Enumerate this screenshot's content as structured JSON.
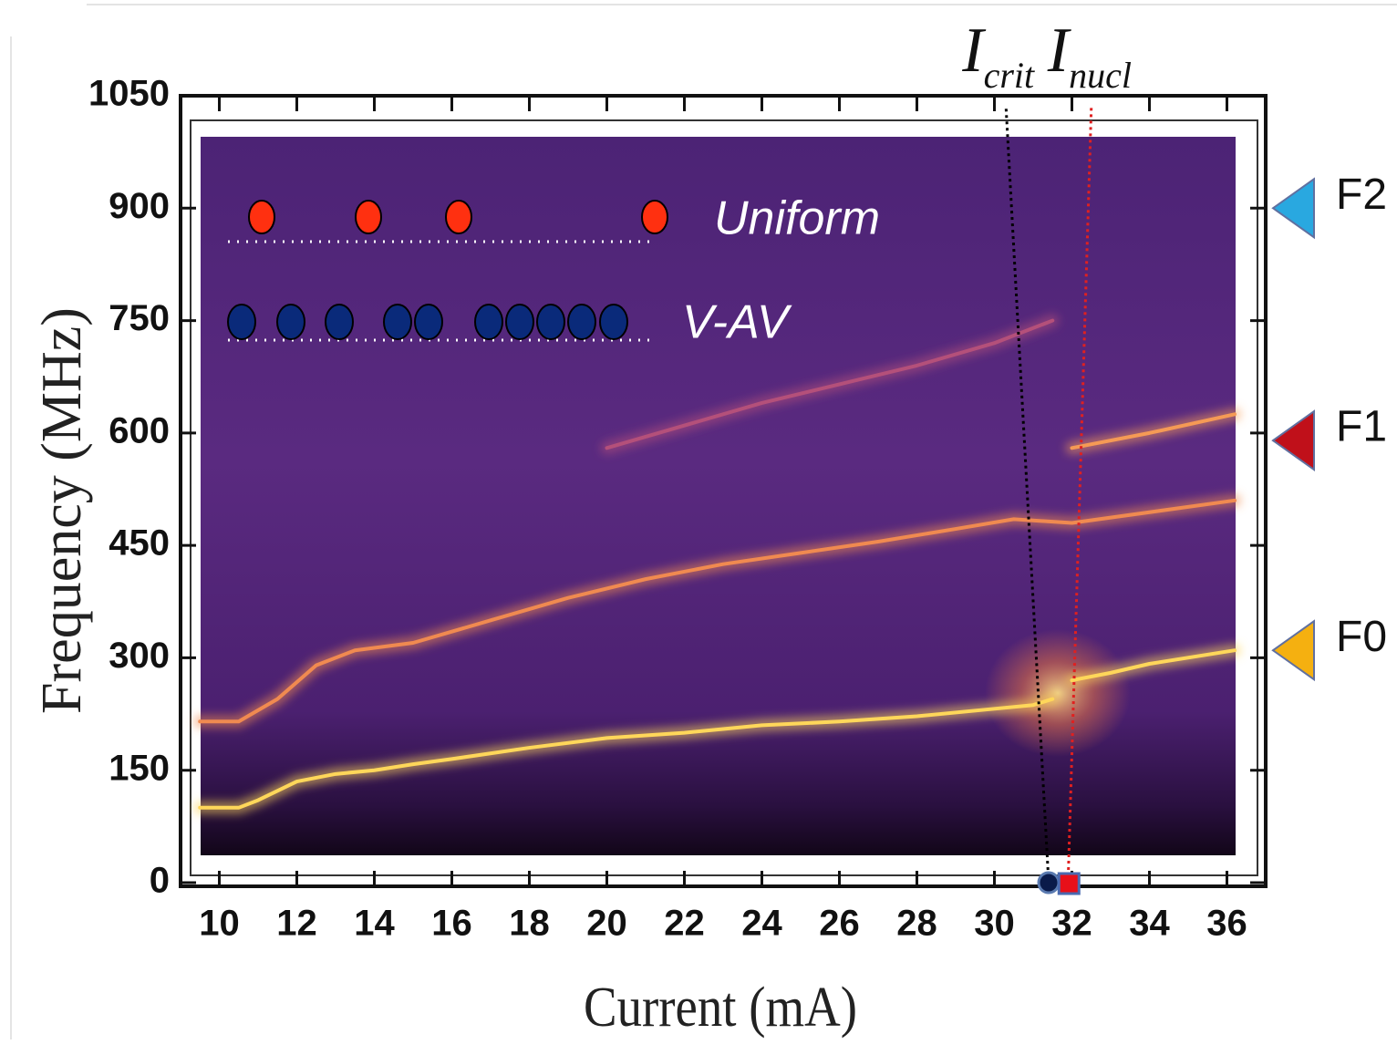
{
  "chart_data": {
    "type": "spectrogram",
    "xlabel": "Current (mA)",
    "ylabel": "Frequency (MHz)",
    "xlim": [
      9,
      37
    ],
    "xticks": [
      10,
      12,
      14,
      16,
      18,
      20,
      22,
      24,
      26,
      28,
      30,
      32,
      34,
      36
    ],
    "ylim": [
      0,
      1050
    ],
    "yticks": [
      0,
      150,
      300,
      450,
      600,
      750,
      900,
      1050
    ],
    "series": [
      {
        "color": "#ffd75a",
        "x": [
          9.5,
          10.5,
          11,
          12,
          13,
          14,
          15,
          16,
          18,
          20,
          22,
          24,
          26,
          28,
          30,
          31,
          31.5,
          null,
          32,
          33,
          34,
          36.2
        ],
        "values": [
          100,
          100,
          110,
          135,
          145,
          150,
          158,
          165,
          180,
          193,
          200,
          210,
          215,
          222,
          232,
          237,
          245,
          null,
          270,
          280,
          292,
          310
        ]
      },
      {
        "color": "#f08a50",
        "x": [
          9.5,
          10.5,
          11.5,
          12.5,
          13.5,
          15,
          17,
          19,
          21,
          23,
          25,
          27,
          29,
          30.5,
          32,
          36.2
        ],
        "values": [
          215,
          215,
          245,
          290,
          310,
          320,
          350,
          380,
          405,
          425,
          440,
          455,
          472,
          485,
          480,
          510
        ]
      },
      {
        "color": "#b4507a",
        "x": [
          20,
          24,
          28,
          30,
          31.5
        ],
        "values": [
          580,
          640,
          690,
          720,
          750
        ]
      },
      {
        "color": "#f59a55",
        "x": [
          32,
          34,
          36.2
        ],
        "values": [
          580,
          600,
          625
        ]
      }
    ],
    "legend": [
      {
        "label": "Uniform"
      },
      {
        "label": "V-AV"
      }
    ],
    "annotations": [
      {
        "text": "I",
        "sub": "crit",
        "x": [
          31.4,
          30.3
        ],
        "color": "#000000"
      },
      {
        "text": "I",
        "sub": "nucl",
        "x": [
          31.9,
          32.5
        ],
        "color": "#e02020"
      }
    ],
    "side_markers": [
      {
        "label": "F2",
        "y": 900,
        "color": "#29a8e0"
      },
      {
        "label": "F1",
        "y": 590,
        "color": "#c0101a"
      },
      {
        "label": "F0",
        "y": 310,
        "color": "#f5b010"
      }
    ]
  }
}
